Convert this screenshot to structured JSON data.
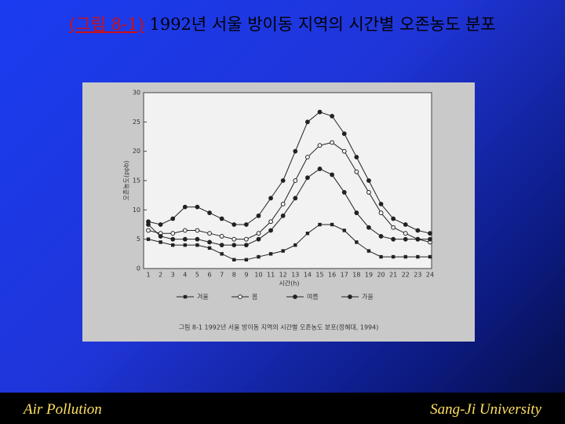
{
  "slide": {
    "title_prefix": "(그림 8-1)",
    "title": "1992년 서울 방이동 지역의 시간별 오존농도 분포",
    "footer_left": "Air Pollution",
    "footer_right": "Sang-Ji University"
  },
  "chart_data": {
    "type": "line",
    "caption": "그림 8-1  1992년 서울 방이동 지역의 시간별 오존농도 분포(정해대, 1994)",
    "xlabel": "시간(h)",
    "ylabel": "오존농도(ppb)",
    "categories": [
      "1",
      "2",
      "3",
      "4",
      "5",
      "6",
      "7",
      "8",
      "9",
      "10",
      "11",
      "12",
      "13",
      "14",
      "15",
      "16",
      "17",
      "18",
      "19",
      "20",
      "21",
      "22",
      "23",
      "24"
    ],
    "ylim": [
      0,
      30
    ],
    "yticks": [
      0,
      5,
      10,
      15,
      20,
      25,
      30
    ],
    "series": [
      {
        "name": "겨울",
        "color": "#222222",
        "marker": "square",
        "values": [
          5,
          4.5,
          4,
          4,
          4,
          3.5,
          2.5,
          1.5,
          1.5,
          2,
          2.5,
          3,
          4,
          6,
          7.5,
          7.5,
          6.5,
          4.5,
          3,
          2,
          2,
          2,
          2,
          2
        ]
      },
      {
        "name": "봄",
        "color": "#222222",
        "marker": "open",
        "values": [
          6.5,
          6,
          6,
          6.5,
          6.5,
          6,
          5.5,
          5,
          5,
          6,
          8,
          11,
          15,
          19,
          21,
          21.5,
          20,
          16.5,
          13,
          9.5,
          7,
          6,
          5,
          4.5
        ]
      },
      {
        "name": "여름",
        "color": "#222222",
        "marker": "filled",
        "values": [
          8,
          7.5,
          8.5,
          10.5,
          10.5,
          9.5,
          8.5,
          7.5,
          7.5,
          9,
          12,
          15,
          20,
          25,
          26.7,
          26,
          23,
          19,
          15,
          11,
          8.5,
          7.5,
          6.5,
          6
        ]
      },
      {
        "name": "가을",
        "color": "#222222",
        "marker": "filled",
        "values": [
          7.5,
          5.5,
          5,
          5,
          5,
          4.5,
          4,
          4,
          4,
          5,
          6.5,
          9,
          12,
          15.5,
          17,
          16,
          13,
          9.5,
          7,
          5.5,
          5,
          5,
          5,
          5
        ]
      }
    ]
  }
}
